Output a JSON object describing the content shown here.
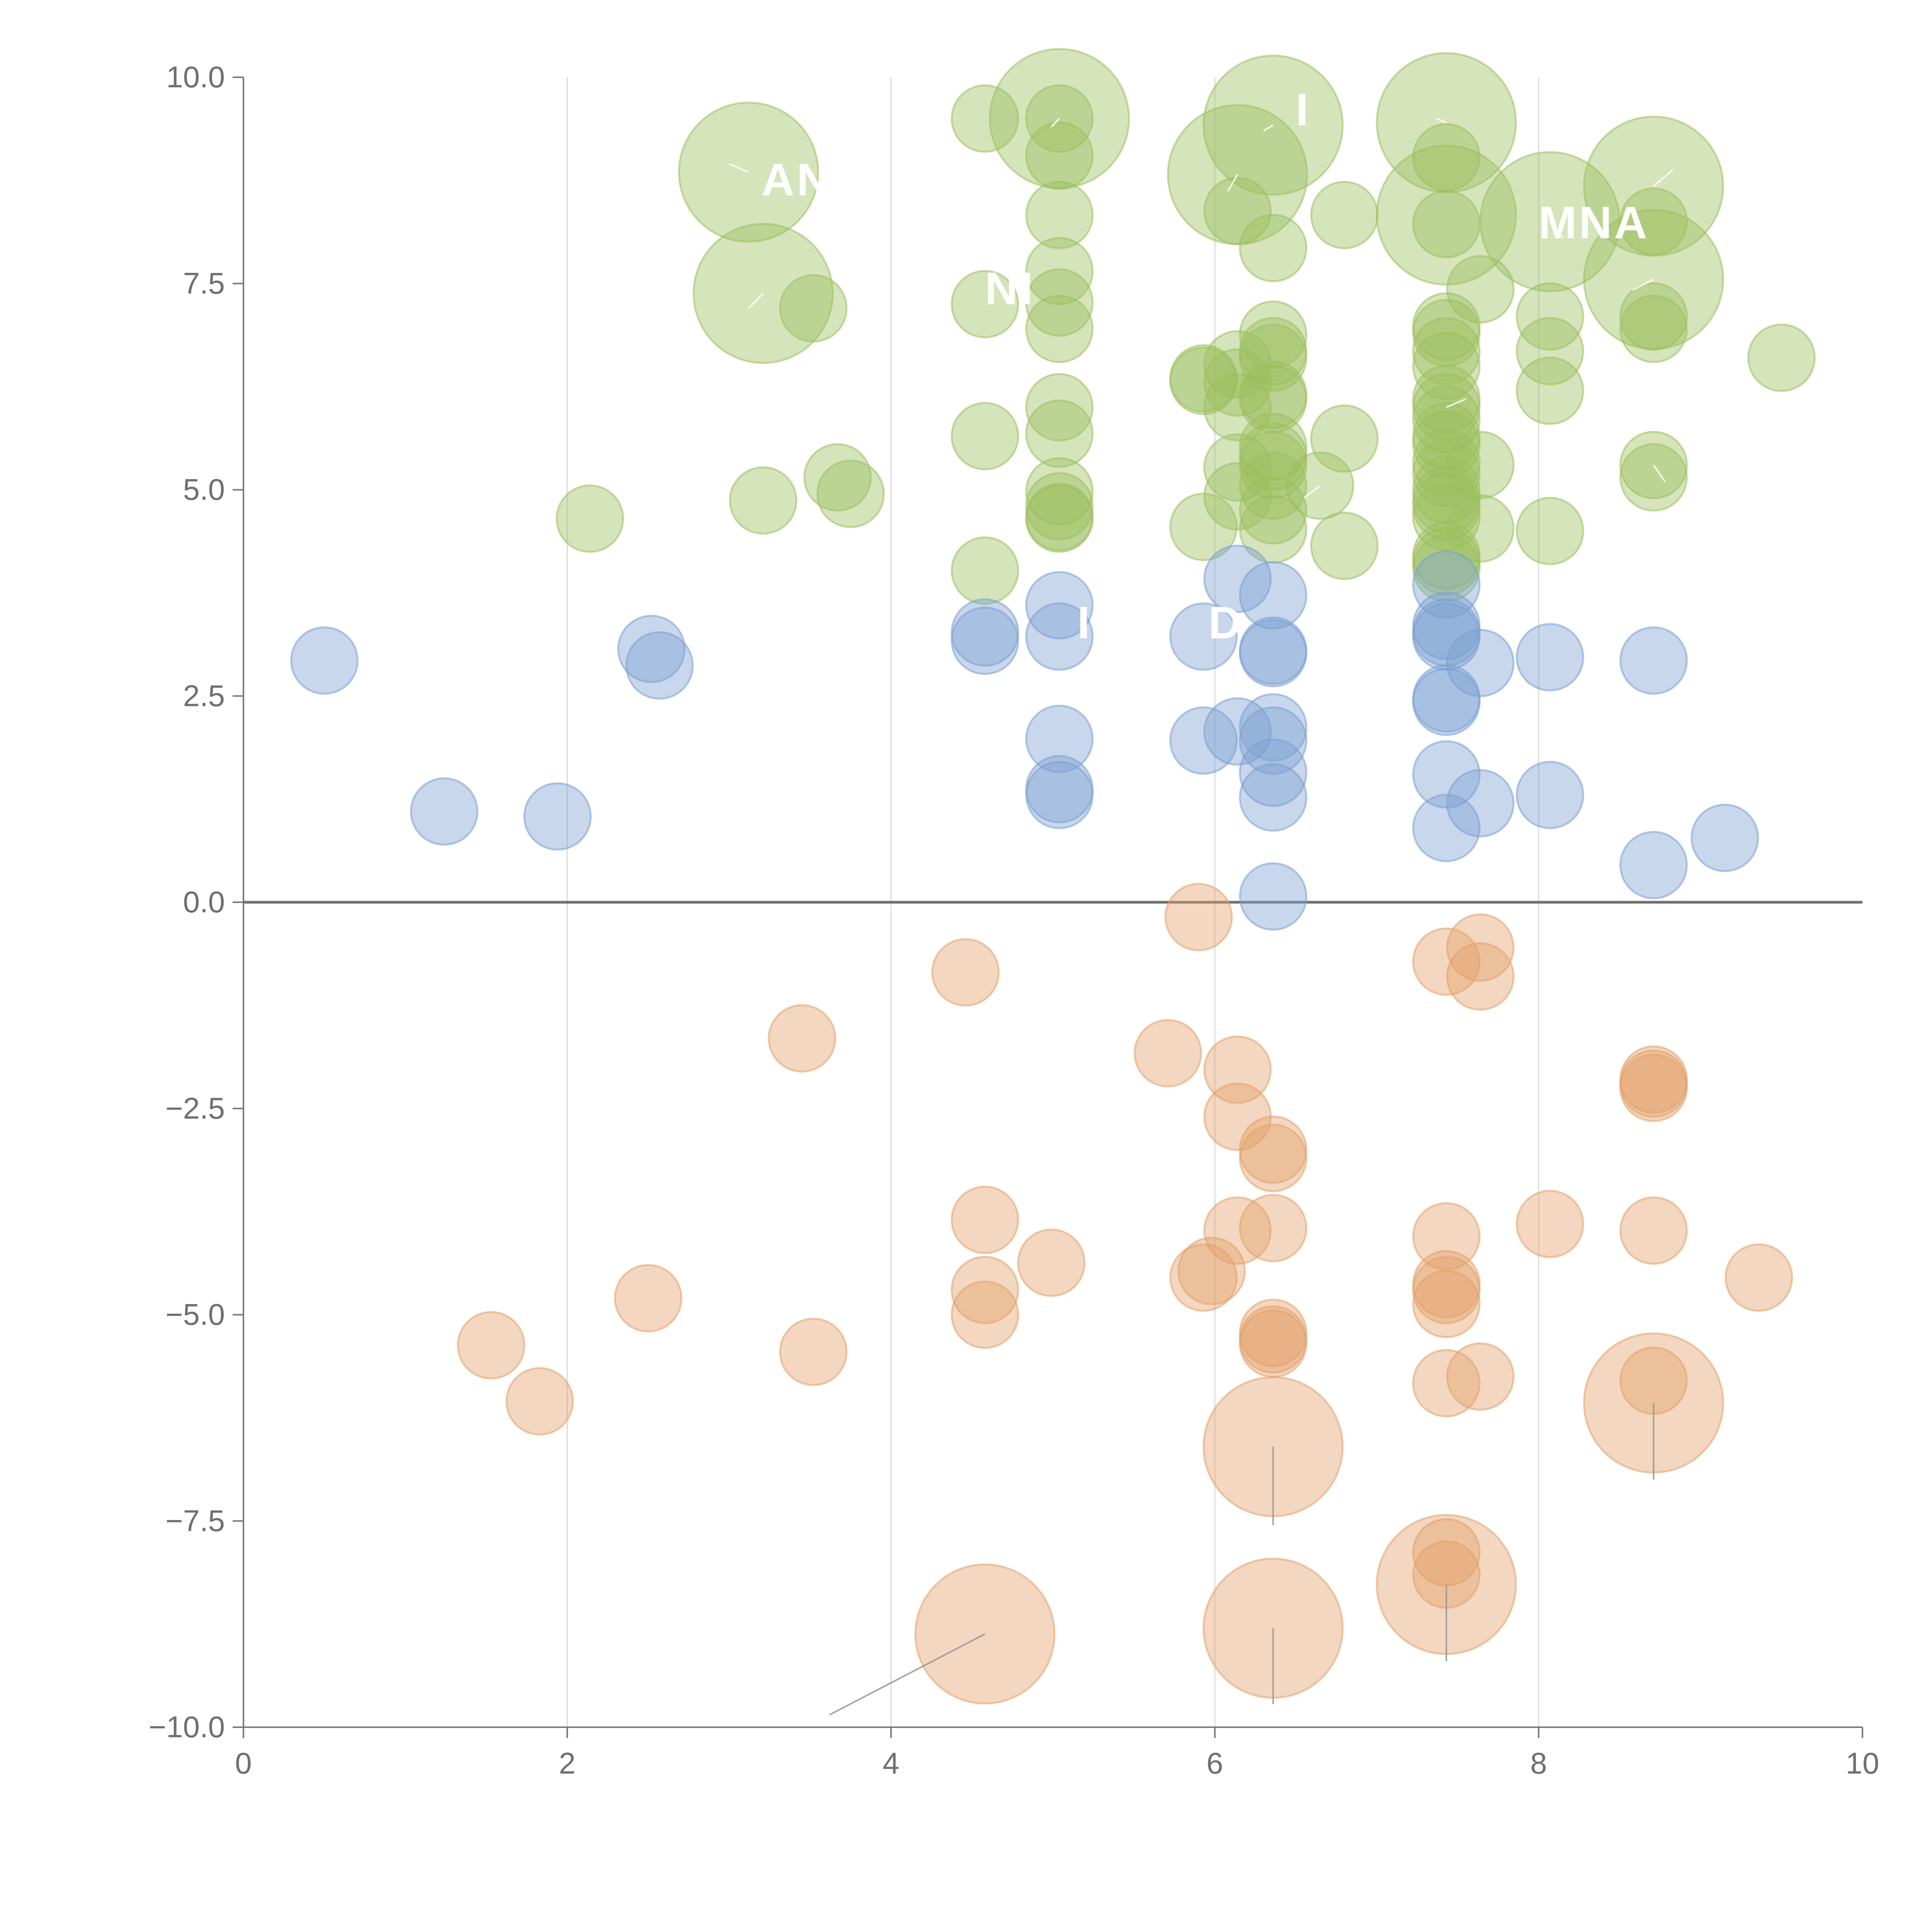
{
  "colors": {
    "green": "#9cbf5e",
    "blue": "#7b9fd1",
    "orange": "#e3a06a",
    "axis": "#7a7a7a",
    "grid": "#d9d9d9",
    "tick_text": "#6f6f6f",
    "label_text": "#ffffff"
  },
  "chart_data": {
    "type": "scatter",
    "title": "",
    "xlabel": "",
    "ylabel": "",
    "xlim": [
      0,
      10
    ],
    "ylim": [
      -10,
      10
    ],
    "grid": "vertical",
    "x_ticks": [
      "0",
      "2",
      "4",
      "6",
      "8",
      "10"
    ],
    "x_tick_values": [
      0,
      2,
      4,
      6,
      8,
      10
    ],
    "y_ticks": [
      "10.0",
      "7.5",
      "5.0",
      "2.5",
      "0.0",
      "−2.5",
      "−5.0",
      "−7.5",
      "−10.0"
    ],
    "y_tick_values": [
      10,
      7.5,
      5,
      2.5,
      0,
      -2.5,
      -5,
      -7.5,
      -10
    ],
    "series": [
      {
        "name": "green",
        "color_key": "green",
        "points": [
          [
            4.58,
            9.5,
            1
          ],
          [
            5.04,
            9.5,
            3
          ],
          [
            5.04,
            9.5,
            1
          ],
          [
            5.04,
            9.05,
            1
          ],
          [
            6.36,
            9.42,
            3
          ],
          [
            7.43,
            9.45,
            3
          ],
          [
            7.43,
            9.03,
            1
          ],
          [
            3.12,
            8.85,
            3
          ],
          [
            6.14,
            8.82,
            3
          ],
          [
            6.14,
            8.38,
            1
          ],
          [
            5.04,
            8.33,
            1
          ],
          [
            6.8,
            8.33,
            1
          ],
          [
            7.43,
            8.33,
            3
          ],
          [
            7.43,
            8.22,
            1
          ],
          [
            8.07,
            8.25,
            3
          ],
          [
            8.71,
            8.68,
            3
          ],
          [
            8.71,
            8.25,
            1
          ],
          [
            6.36,
            7.93,
            1
          ],
          [
            5.04,
            7.65,
            1
          ],
          [
            3.21,
            7.38,
            3
          ],
          [
            3.52,
            7.2,
            1
          ],
          [
            4.58,
            7.25,
            1
          ],
          [
            5.04,
            7.27,
            1
          ],
          [
            5.04,
            6.95,
            1
          ],
          [
            7.64,
            7.43,
            1
          ],
          [
            8.71,
            7.55,
            3
          ],
          [
            8.71,
            7.1,
            1
          ],
          [
            8.71,
            6.95,
            1
          ],
          [
            8.07,
            7.1,
            1
          ],
          [
            8.07,
            6.68,
            1
          ],
          [
            9.5,
            6.6,
            1
          ],
          [
            6.36,
            6.88,
            1
          ],
          [
            6.36,
            6.68,
            1
          ],
          [
            6.36,
            6.6,
            1
          ],
          [
            7.43,
            6.98,
            1
          ],
          [
            7.43,
            6.9,
            1
          ],
          [
            7.43,
            6.68,
            1
          ],
          [
            7.43,
            6.5,
            1
          ],
          [
            6.14,
            6.52,
            1
          ],
          [
            5.93,
            6.35,
            1
          ],
          [
            5.93,
            6.32,
            1
          ],
          [
            6.14,
            6.3,
            1
          ],
          [
            6.14,
            6.0,
            1
          ],
          [
            6.36,
            6.15,
            1
          ],
          [
            6.36,
            6.1,
            1
          ],
          [
            5.04,
            6.0,
            1
          ],
          [
            7.43,
            6.1,
            1
          ],
          [
            7.43,
            6.0,
            1
          ],
          [
            7.43,
            5.85,
            1
          ],
          [
            7.43,
            5.65,
            1
          ],
          [
            7.43,
            5.55,
            1
          ],
          [
            8.07,
            6.2,
            1
          ],
          [
            4.58,
            5.65,
            1
          ],
          [
            5.04,
            5.68,
            1
          ],
          [
            6.8,
            5.62,
            1
          ],
          [
            6.36,
            5.52,
            1
          ],
          [
            6.36,
            5.4,
            1
          ],
          [
            6.36,
            5.3,
            1
          ],
          [
            7.43,
            5.33,
            1
          ],
          [
            7.43,
            5.2,
            1
          ],
          [
            7.64,
            5.3,
            1
          ],
          [
            8.71,
            5.3,
            1
          ],
          [
            8.71,
            5.15,
            1
          ],
          [
            6.14,
            5.27,
            1
          ],
          [
            3.67,
            5.15,
            1
          ],
          [
            3.75,
            4.95,
            1
          ],
          [
            3.21,
            4.87,
            1
          ],
          [
            2.14,
            4.65,
            1
          ],
          [
            5.04,
            4.98,
            1
          ],
          [
            5.04,
            4.8,
            1
          ],
          [
            5.04,
            4.67,
            1
          ],
          [
            5.04,
            4.65,
            1
          ],
          [
            6.14,
            4.92,
            1
          ],
          [
            6.65,
            5.05,
            1
          ],
          [
            6.36,
            5.05,
            1
          ],
          [
            6.36,
            4.75,
            1
          ],
          [
            6.36,
            4.52,
            1
          ],
          [
            5.93,
            4.55,
            1
          ],
          [
            7.43,
            5.0,
            1
          ],
          [
            7.43,
            4.88,
            1
          ],
          [
            7.43,
            4.8,
            1
          ],
          [
            7.43,
            4.67,
            1
          ],
          [
            7.64,
            4.53,
            1
          ],
          [
            8.07,
            4.5,
            1
          ],
          [
            7.43,
            4.2,
            1
          ],
          [
            7.43,
            4.13,
            1
          ],
          [
            7.43,
            4.05,
            1
          ],
          [
            6.8,
            4.32,
            1
          ],
          [
            4.58,
            4.02,
            1
          ]
        ]
      },
      {
        "name": "blue",
        "color_key": "blue",
        "points": [
          [
            0.5,
            2.93,
            1
          ],
          [
            1.24,
            1.1,
            1
          ],
          [
            1.94,
            1.04,
            1
          ],
          [
            2.52,
            3.07,
            1
          ],
          [
            2.57,
            2.87,
            1
          ],
          [
            4.58,
            3.27,
            1
          ],
          [
            4.58,
            3.17,
            1
          ],
          [
            5.04,
            3.6,
            1
          ],
          [
            5.04,
            3.22,
            1
          ],
          [
            5.04,
            1.98,
            1
          ],
          [
            5.04,
            1.37,
            1
          ],
          [
            5.04,
            1.3,
            1
          ],
          [
            5.93,
            3.22,
            1
          ],
          [
            5.93,
            1.96,
            1
          ],
          [
            6.14,
            3.92,
            1
          ],
          [
            6.14,
            2.07,
            1
          ],
          [
            6.36,
            3.72,
            1
          ],
          [
            6.36,
            3.05,
            1
          ],
          [
            6.36,
            3.02,
            1
          ],
          [
            6.36,
            2.12,
            1
          ],
          [
            6.36,
            1.96,
            1
          ],
          [
            6.36,
            1.57,
            1
          ],
          [
            6.36,
            1.27,
            1
          ],
          [
            6.36,
            0.07,
            1
          ],
          [
            7.43,
            3.85,
            1
          ],
          [
            7.43,
            3.35,
            1
          ],
          [
            7.43,
            3.27,
            1
          ],
          [
            7.43,
            3.22,
            1
          ],
          [
            7.43,
            2.47,
            1
          ],
          [
            7.43,
            2.43,
            1
          ],
          [
            7.43,
            1.55,
            1
          ],
          [
            7.43,
            0.9,
            1
          ],
          [
            7.64,
            2.9,
            1
          ],
          [
            7.64,
            1.2,
            1
          ],
          [
            8.07,
            2.97,
            1
          ],
          [
            8.07,
            1.3,
            1
          ],
          [
            8.71,
            2.93,
            1
          ],
          [
            8.71,
            0.45,
            1
          ],
          [
            9.15,
            0.78,
            1
          ]
        ]
      },
      {
        "name": "orange",
        "color_key": "orange",
        "points": [
          [
            5.9,
            -0.18,
            1
          ],
          [
            4.46,
            -0.85,
            1
          ],
          [
            7.43,
            -0.72,
            1
          ],
          [
            7.64,
            -0.55,
            1
          ],
          [
            7.64,
            -0.9,
            1
          ],
          [
            3.45,
            -1.65,
            1
          ],
          [
            5.71,
            -1.83,
            1
          ],
          [
            6.14,
            -2.03,
            1
          ],
          [
            6.14,
            -2.6,
            1
          ],
          [
            6.36,
            -3.0,
            1
          ],
          [
            6.36,
            -3.1,
            1
          ],
          [
            8.71,
            -2.15,
            1
          ],
          [
            8.71,
            -2.2,
            1
          ],
          [
            8.71,
            -2.25,
            1
          ],
          [
            4.58,
            -3.85,
            1
          ],
          [
            6.14,
            -3.98,
            1
          ],
          [
            6.36,
            -3.95,
            1
          ],
          [
            7.43,
            -4.05,
            1
          ],
          [
            8.07,
            -3.9,
            1
          ],
          [
            8.71,
            -3.98,
            1
          ],
          [
            4.99,
            -4.37,
            1
          ],
          [
            5.93,
            -4.55,
            1
          ],
          [
            5.98,
            -4.47,
            1
          ],
          [
            4.58,
            -4.7,
            1
          ],
          [
            4.58,
            -5.0,
            1
          ],
          [
            2.5,
            -4.8,
            1
          ],
          [
            1.53,
            -5.37,
            1
          ],
          [
            1.83,
            -6.05,
            1
          ],
          [
            3.52,
            -5.45,
            1
          ],
          [
            6.36,
            -5.22,
            1
          ],
          [
            6.36,
            -5.3,
            1
          ],
          [
            6.36,
            -5.35,
            1
          ],
          [
            7.43,
            -4.63,
            1
          ],
          [
            7.43,
            -4.7,
            1
          ],
          [
            7.43,
            -4.87,
            1
          ],
          [
            9.36,
            -4.55,
            1
          ],
          [
            7.43,
            -5.83,
            1
          ],
          [
            7.64,
            -5.75,
            1
          ],
          [
            8.71,
            -5.8,
            1
          ],
          [
            8.71,
            -6.07,
            3
          ],
          [
            6.36,
            -6.6,
            3
          ],
          [
            7.43,
            -7.88,
            1
          ],
          [
            7.43,
            -8.15,
            1
          ],
          [
            7.43,
            -8.27,
            3
          ],
          [
            4.58,
            -8.87,
            3
          ],
          [
            6.36,
            -8.8,
            3
          ]
        ]
      }
    ],
    "leader_lines": [
      {
        "color_key": "green",
        "from": [
          3.12,
          8.85
        ],
        "to": [
          3.0,
          8.95
        ]
      },
      {
        "color_key": "green",
        "from": [
          3.21,
          7.38
        ],
        "to": [
          3.12,
          7.2
        ]
      },
      {
        "color_key": "green",
        "from": [
          5.04,
          9.5
        ],
        "to": [
          4.99,
          9.4
        ]
      },
      {
        "color_key": "green",
        "from": [
          6.36,
          9.42
        ],
        "to": [
          6.3,
          9.35
        ]
      },
      {
        "color_key": "green",
        "from": [
          6.14,
          8.82
        ],
        "to": [
          6.08,
          8.62
        ]
      },
      {
        "color_key": "green",
        "from": [
          7.43,
          9.45
        ],
        "to": [
          7.37,
          9.5
        ]
      },
      {
        "color_key": "green",
        "from": [
          8.71,
          8.68
        ],
        "to": [
          8.83,
          8.88
        ]
      },
      {
        "color_key": "green",
        "from": [
          8.71,
          7.55
        ],
        "to": [
          8.58,
          7.42
        ]
      },
      {
        "color_key": "green",
        "from": [
          8.07,
          8.25
        ],
        "to": [
          8.15,
          8.05
        ]
      },
      {
        "color_key": "green",
        "from": [
          7.43,
          6.0
        ],
        "to": [
          7.55,
          6.1
        ]
      },
      {
        "color_key": "green",
        "from": [
          8.71,
          5.3
        ],
        "to": [
          8.78,
          5.1
        ]
      },
      {
        "color_key": "green",
        "from": [
          6.65,
          5.05
        ],
        "to": [
          6.55,
          4.9
        ]
      },
      {
        "color_key": "orange",
        "from": [
          4.58,
          -8.87
        ],
        "to": [
          3.62,
          -9.85
        ]
      },
      {
        "color_key": "orange",
        "from": [
          6.36,
          -6.6
        ],
        "to": [
          6.36,
          -7.55
        ]
      },
      {
        "color_key": "orange",
        "from": [
          6.36,
          -8.8
        ],
        "to": [
          6.36,
          -9.72
        ]
      },
      {
        "color_key": "orange",
        "from": [
          7.43,
          -8.27
        ],
        "to": [
          7.43,
          -9.2
        ]
      },
      {
        "color_key": "orange",
        "from": [
          8.71,
          -6.07
        ],
        "to": [
          8.71,
          -7.0
        ]
      }
    ],
    "annotations": [
      {
        "text": "AN",
        "x": 3.2,
        "y": 8.57
      },
      {
        "text": "NI",
        "x": 4.58,
        "y": 7.25
      },
      {
        "text": "MNA",
        "x": 8.0,
        "y": 8.05
      },
      {
        "text": "I",
        "x": 6.5,
        "y": 9.42
      },
      {
        "text": "D",
        "x": 5.96,
        "y": 3.2
      },
      {
        "text": "I",
        "x": 5.15,
        "y": 3.2
      }
    ]
  }
}
